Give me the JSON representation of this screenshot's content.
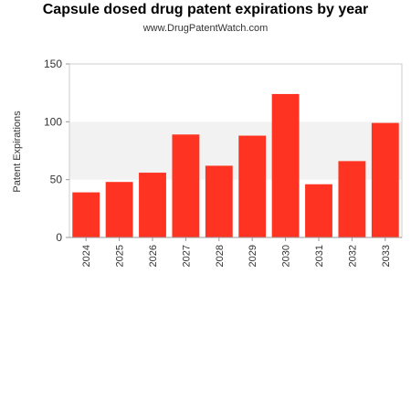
{
  "chart_data": {
    "type": "bar",
    "title": "Capsule dosed drug patent expirations by year",
    "subtitle": "www.DrugPatentWatch.com",
    "xlabel": "",
    "ylabel": "Patent Expirations",
    "categories": [
      "2024",
      "2025",
      "2026",
      "2027",
      "2028",
      "2029",
      "2030",
      "2031",
      "2032",
      "2033"
    ],
    "values": [
      39,
      48,
      56,
      89,
      62,
      88,
      124,
      46,
      66,
      99
    ],
    "ylim": [
      0,
      150
    ],
    "yticks": [
      0,
      50,
      100,
      150
    ],
    "bar_color": "#ff3322",
    "band_color": "#f2f2f2",
    "grid": false
  }
}
